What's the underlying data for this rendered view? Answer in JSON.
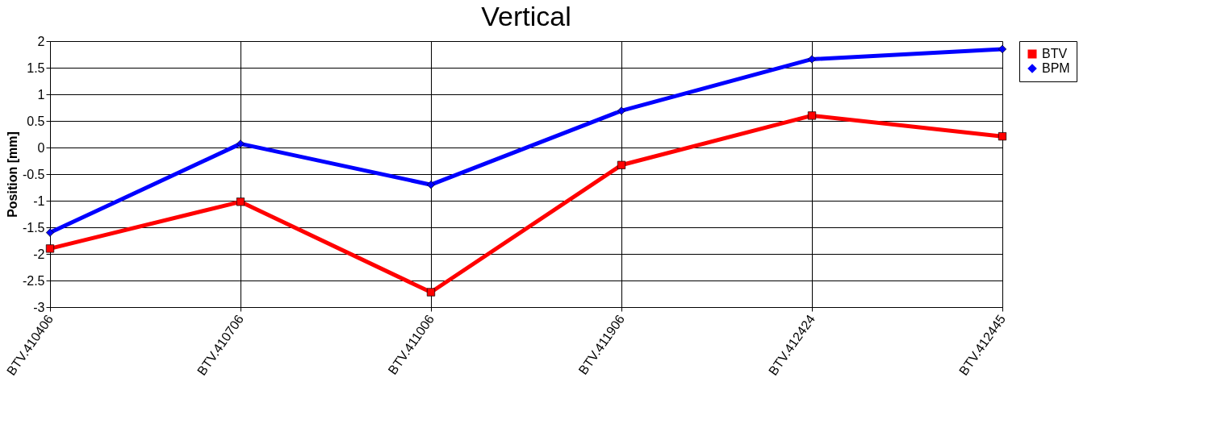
{
  "chart_data": {
    "type": "line",
    "title": "Vertical",
    "ylabel": "Position [mm]",
    "categories": [
      "BTV.410406",
      "BTV.410706",
      "BTV.411006",
      "BTV.411906",
      "BTV.412424",
      "BTV.412445"
    ],
    "series": [
      {
        "name": "BTV",
        "color": "#ff0000",
        "marker": "square",
        "values": [
          -1.9,
          -1.02,
          -2.72,
          -0.33,
          0.6,
          0.21
        ]
      },
      {
        "name": "BPM",
        "color": "#0000ff",
        "marker": "diamond",
        "values": [
          -1.6,
          0.07,
          -0.7,
          0.69,
          1.66,
          1.85
        ]
      }
    ],
    "ylim": [
      -3,
      2
    ],
    "yticks": [
      -3,
      -2.5,
      -2,
      -1.5,
      -1,
      -0.5,
      0,
      0.5,
      1,
      1.5,
      2
    ],
    "grid": true,
    "legend": "right",
    "line_style": "solid"
  }
}
